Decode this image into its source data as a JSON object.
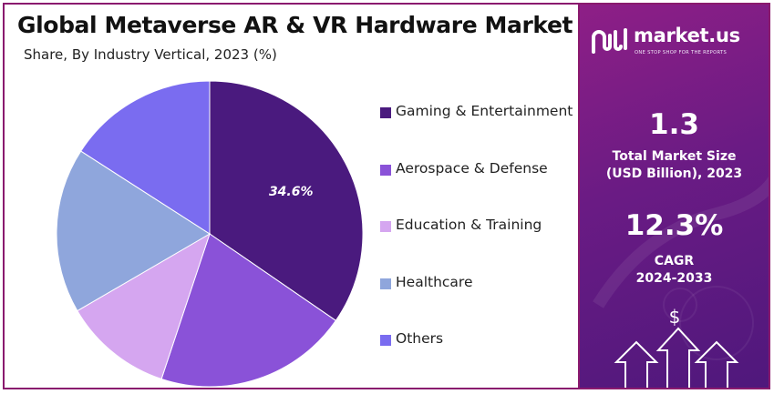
{
  "title": "Global Metaverse AR & VR Hardware Market",
  "subtitle": "Share, By Industry Vertical, 2023 (%)",
  "chart_data": {
    "type": "pie",
    "title": "Global Metaverse AR & VR Hardware Market",
    "subtitle": "Share, By Industry Vertical, 2023 (%)",
    "categories": [
      "Gaming & Entertainment",
      "Aerospace & Defense",
      "Education & Training",
      "Healthcare",
      "Others"
    ],
    "values": [
      34.6,
      20.5,
      11.5,
      17.5,
      15.9
    ],
    "colors": [
      "#4a1a7e",
      "#8a52d8",
      "#d5a6f0",
      "#8fa6dc",
      "#7a6cf0"
    ],
    "data_labels": [
      "34.6%",
      "",
      "",
      "",
      ""
    ],
    "legend_position": "right"
  },
  "brand": {
    "name": "market.us",
    "tagline": "ONE STOP SHOP FOR THE REPORTS"
  },
  "stats": {
    "market_size_value": "1.3",
    "market_size_label_line1": "Total Market Size",
    "market_size_label_line2": "(USD Billion), 2023",
    "cagr_value": "12.3%",
    "cagr_label_line1": "CAGR",
    "cagr_label_line2": "2024-2033"
  },
  "icons": {
    "currency": "$"
  }
}
